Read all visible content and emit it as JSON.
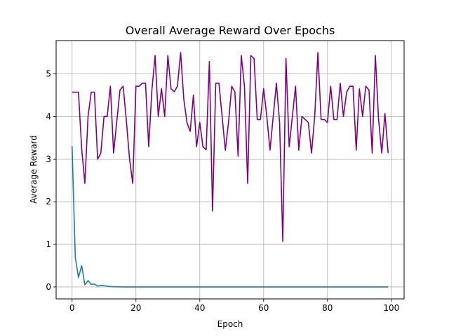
{
  "chart_data": {
    "type": "line",
    "title": "Overall Average Reward Over Epochs",
    "xlabel": "Epoch",
    "ylabel": "Average Reward",
    "xlim": [
      -5,
      104
    ],
    "ylim": [
      -0.28,
      5.78
    ],
    "xticks": [
      0,
      20,
      40,
      60,
      80,
      100
    ],
    "yticks": [
      0,
      1,
      2,
      3,
      4,
      5
    ],
    "xtick_labels": [
      "0",
      "20",
      "40",
      "60",
      "80",
      "100"
    ],
    "ytick_labels": [
      "0",
      "1",
      "2",
      "3",
      "4",
      "5"
    ],
    "grid": true,
    "legend": null,
    "series": [
      {
        "color": "#7f007f",
        "x": [
          0,
          1,
          2,
          3,
          4,
          5,
          6,
          7,
          8,
          9,
          10,
          11,
          12,
          13,
          14,
          15,
          16,
          17,
          18,
          19,
          20,
          21,
          22,
          23,
          24,
          25,
          26,
          27,
          28,
          29,
          30,
          31,
          32,
          33,
          34,
          35,
          36,
          37,
          38,
          39,
          40,
          41,
          42,
          43,
          44,
          45,
          46,
          47,
          48,
          49,
          50,
          51,
          52,
          53,
          54,
          55,
          56,
          57,
          58,
          59,
          60,
          61,
          62,
          63,
          64,
          65,
          66,
          67,
          68,
          69,
          70,
          71,
          72,
          73,
          74,
          75,
          76,
          77,
          78,
          79,
          80,
          81,
          82,
          83,
          84,
          85,
          86,
          87,
          88,
          89,
          90,
          91,
          92,
          93,
          94,
          95,
          96,
          97,
          98,
          99
        ],
        "y": [
          4.57,
          4.57,
          4.57,
          3.25,
          2.43,
          4.0,
          4.57,
          4.57,
          3.0,
          3.14,
          4.0,
          4.0,
          4.71,
          3.14,
          3.88,
          4.62,
          4.71,
          3.9,
          3.0,
          2.43,
          4.71,
          4.71,
          4.78,
          4.78,
          3.29,
          4.62,
          5.43,
          4.0,
          4.65,
          4.0,
          5.43,
          4.65,
          4.58,
          4.71,
          5.5,
          4.4,
          3.85,
          3.65,
          4.5,
          3.29,
          3.86,
          3.29,
          3.22,
          5.29,
          1.78,
          4.78,
          4.78,
          4.0,
          3.21,
          3.86,
          4.71,
          4.57,
          3.07,
          5.43,
          4.71,
          2.43,
          5.43,
          5.36,
          3.93,
          3.93,
          4.65,
          4.0,
          3.21,
          4.0,
          4.78,
          3.86,
          1.07,
          5.36,
          3.29,
          4.0,
          4.71,
          3.21,
          4.0,
          3.93,
          3.86,
          3.14,
          4.0,
          5.5,
          3.93,
          3.93,
          3.86,
          4.71,
          3.93,
          3.93,
          4.78,
          4.0,
          4.57,
          4.71,
          4.71,
          3.21,
          4.65,
          4.0,
          4.71,
          4.62,
          3.14,
          5.43,
          3.93,
          3.14,
          4.07,
          3.14
        ]
      },
      {
        "color": "#1f77b4",
        "x": [
          0,
          1,
          2,
          3,
          4,
          5,
          6,
          7,
          8,
          9,
          10,
          11,
          12,
          13,
          14,
          15,
          16,
          17,
          18,
          19,
          20,
          21,
          22,
          23,
          24,
          25,
          26,
          27,
          28,
          29,
          30,
          31,
          32,
          33,
          34,
          35,
          36,
          37,
          38,
          39,
          40,
          41,
          42,
          43,
          44,
          45,
          46,
          47,
          48,
          49,
          50,
          51,
          52,
          53,
          54,
          55,
          56,
          57,
          58,
          59,
          60,
          61,
          62,
          63,
          64,
          65,
          66,
          67,
          68,
          69,
          70,
          71,
          72,
          73,
          74,
          75,
          76,
          77,
          78,
          79,
          80,
          81,
          82,
          83,
          84,
          85,
          86,
          87,
          88,
          89,
          90,
          91,
          92,
          93,
          94,
          95,
          96,
          97,
          98,
          99
        ],
        "y": [
          3.3,
          0.7,
          0.22,
          0.5,
          0.05,
          0.15,
          0.06,
          0.07,
          0.02,
          0.04,
          0.03,
          0.02,
          0.01,
          0.005,
          0.003,
          0.002,
          0.001,
          0,
          0,
          0,
          0,
          0,
          0,
          0,
          0,
          0,
          0,
          0,
          0,
          0,
          0,
          0,
          0,
          0,
          0,
          0,
          0,
          0,
          0,
          0,
          0,
          0,
          0,
          0,
          0,
          0,
          0,
          0,
          0,
          0,
          0,
          0,
          0,
          0,
          0,
          0,
          0,
          0,
          0,
          0,
          0,
          0,
          0,
          0,
          0,
          0,
          0,
          0,
          0,
          0,
          0,
          0,
          0,
          0,
          0,
          0,
          0,
          0,
          0,
          0,
          0,
          0,
          0,
          0,
          0,
          0,
          0,
          0,
          0,
          0,
          0,
          0,
          0,
          0,
          0,
          0,
          0,
          0,
          0,
          0
        ]
      }
    ]
  }
}
